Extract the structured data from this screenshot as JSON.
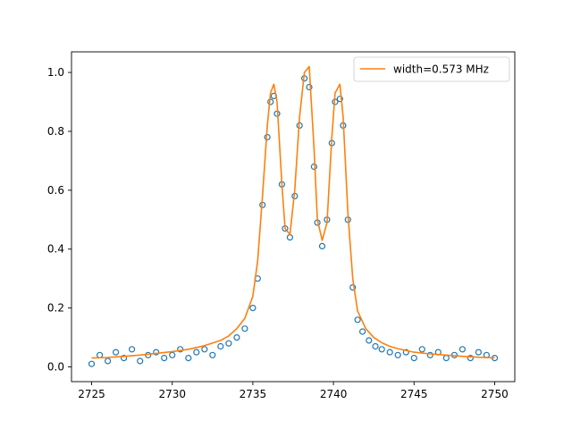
{
  "chart_data": {
    "type": "scatter",
    "title": "",
    "xlabel": "",
    "ylabel": "",
    "xlim": [
      2723.75,
      2751.25
    ],
    "ylim": [
      -0.05,
      1.07
    ],
    "x_ticks": [
      2725,
      2730,
      2735,
      2740,
      2745,
      2750
    ],
    "y_ticks": [
      0.0,
      0.2,
      0.4,
      0.6,
      0.8,
      1.0
    ],
    "x_tick_labels": [
      "2725",
      "2730",
      "2735",
      "2740",
      "2745",
      "2750"
    ],
    "y_tick_labels": [
      "0.0",
      "0.2",
      "0.4",
      "0.6",
      "0.8",
      "1.0"
    ],
    "grid": false,
    "legend_position": "top-right",
    "legend": [
      {
        "label": "width=0.573 MHz",
        "color": "#ff7f0e"
      }
    ],
    "colors": {
      "data": "#1f77b4",
      "fit": "#ff7f0e"
    },
    "series": [
      {
        "kind": "scatter",
        "marker": "open-circle",
        "x": [
          2725.0,
          2725.5,
          2726.0,
          2726.5,
          2727.0,
          2727.5,
          2728.0,
          2728.5,
          2729.0,
          2729.5,
          2730.0,
          2730.5,
          2731.0,
          2731.5,
          2732.0,
          2732.5,
          2733.0,
          2733.5,
          2734.0,
          2734.5,
          2735.0,
          2735.3,
          2735.6,
          2735.9,
          2736.1,
          2736.3,
          2736.5,
          2736.8,
          2737.0,
          2737.3,
          2737.6,
          2737.9,
          2738.2,
          2738.5,
          2738.8,
          2739.0,
          2739.3,
          2739.6,
          2739.9,
          2740.1,
          2740.4,
          2740.6,
          2740.9,
          2741.2,
          2741.5,
          2741.8,
          2742.2,
          2742.6,
          2743.0,
          2743.5,
          2744.0,
          2744.5,
          2745.0,
          2745.5,
          2746.0,
          2746.5,
          2747.0,
          2747.5,
          2748.0,
          2748.5,
          2749.0,
          2749.5,
          2750.0
        ],
        "y": [
          0.01,
          0.04,
          0.02,
          0.05,
          0.03,
          0.06,
          0.02,
          0.04,
          0.05,
          0.03,
          0.04,
          0.06,
          0.03,
          0.05,
          0.06,
          0.04,
          0.07,
          0.08,
          0.1,
          0.13,
          0.2,
          0.3,
          0.55,
          0.78,
          0.9,
          0.92,
          0.86,
          0.62,
          0.47,
          0.44,
          0.58,
          0.82,
          0.98,
          0.95,
          0.68,
          0.49,
          0.41,
          0.5,
          0.76,
          0.9,
          0.91,
          0.82,
          0.5,
          0.27,
          0.16,
          0.12,
          0.09,
          0.07,
          0.06,
          0.05,
          0.04,
          0.05,
          0.03,
          0.06,
          0.04,
          0.05,
          0.03,
          0.04,
          0.06,
          0.03,
          0.05,
          0.04,
          0.03
        ]
      },
      {
        "kind": "line",
        "name": "width=0.573 MHz",
        "x": [
          2725.0,
          2726.0,
          2727.0,
          2728.0,
          2729.0,
          2730.0,
          2731.0,
          2732.0,
          2733.0,
          2733.5,
          2734.0,
          2734.5,
          2735.0,
          2735.3,
          2735.6,
          2735.9,
          2736.1,
          2736.3,
          2736.5,
          2736.8,
          2737.0,
          2737.3,
          2737.6,
          2737.9,
          2738.2,
          2738.5,
          2738.8,
          2739.0,
          2739.3,
          2739.6,
          2739.9,
          2740.1,
          2740.4,
          2740.6,
          2740.9,
          2741.2,
          2741.5,
          2742.0,
          2742.5,
          2743.0,
          2743.5,
          2744.0,
          2745.0,
          2746.0,
          2747.0,
          2748.0,
          2749.0,
          2750.0
        ],
        "y": [
          0.03,
          0.032,
          0.036,
          0.04,
          0.046,
          0.052,
          0.06,
          0.072,
          0.09,
          0.105,
          0.13,
          0.165,
          0.24,
          0.36,
          0.58,
          0.82,
          0.93,
          0.96,
          0.9,
          0.62,
          0.47,
          0.45,
          0.6,
          0.85,
          1.0,
          1.02,
          0.74,
          0.5,
          0.43,
          0.49,
          0.78,
          0.93,
          0.96,
          0.85,
          0.52,
          0.3,
          0.19,
          0.13,
          0.1,
          0.082,
          0.07,
          0.062,
          0.05,
          0.044,
          0.04,
          0.036,
          0.033,
          0.031
        ]
      }
    ]
  }
}
